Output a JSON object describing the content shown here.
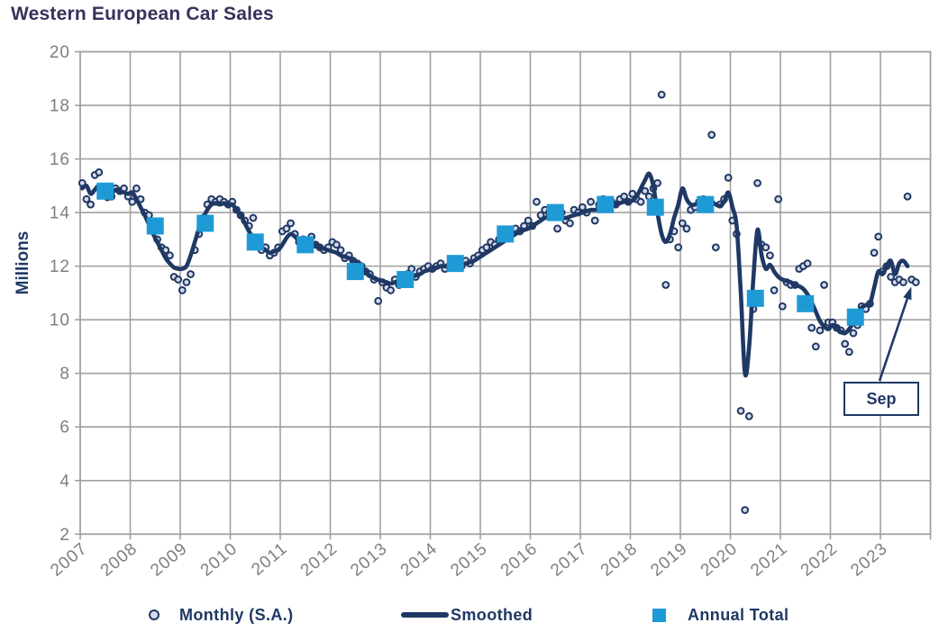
{
  "title": {
    "text": "Western European Car Sales"
  },
  "y_axis": {
    "label": "Millions",
    "min": 2,
    "max": 20,
    "tick_step": 2,
    "ticks": [
      20,
      18,
      16,
      14,
      12,
      10,
      8,
      6,
      4,
      2
    ]
  },
  "x_axis": {
    "labels": [
      "2007",
      "2008",
      "2009",
      "2010",
      "2011",
      "2012",
      "2013",
      "2014",
      "2015",
      "2016",
      "2017",
      "2018",
      "2019",
      "2020",
      "2021",
      "2022",
      "2023"
    ]
  },
  "legend": {
    "items": [
      {
        "label": "Monthly (S.A.)",
        "marker": "circle"
      },
      {
        "label": "Smoothed",
        "marker": "line"
      },
      {
        "label": "Annual Total",
        "marker": "square"
      }
    ]
  },
  "annotation": {
    "text": "Sep",
    "points_to_month": "2023-09",
    "points_to_value": 11.4
  },
  "colors": {
    "navy": "#1F3864",
    "annual_square": "#1E9BD7",
    "dot_fill": "#D7DAEA",
    "grid": "#A0A0A0",
    "axis_text": "#7F7F7F",
    "title_text": "#35325B",
    "background": "#FFFFFF"
  },
  "chart_data": {
    "type": "line",
    "title": "Western European Car Sales",
    "xlabel": "",
    "ylabel": "Millions",
    "ylim": [
      2,
      20
    ],
    "xlim": [
      2007,
      2024
    ],
    "grid": true,
    "legend_position": "bottom",
    "units": "millions of vehicles, seasonally adjusted annual rate",
    "series": [
      {
        "name": "Monthly (S.A.)",
        "style": "scatter-circle",
        "start": "2007-01",
        "end": "2023-09",
        "frequency": "monthly",
        "values_by_year": {
          "2007": [
            15.1,
            14.5,
            14.3,
            15.4,
            15.5,
            14.9,
            14.8,
            14.6,
            14.9,
            14.8,
            14.9,
            14.6
          ],
          "2008": [
            14.4,
            14.9,
            14.5,
            14.0,
            13.9,
            13.4,
            13.0,
            12.7,
            12.6,
            12.4,
            11.6,
            11.5
          ],
          "2009": [
            11.1,
            11.4,
            11.7,
            12.6,
            13.2,
            13.8,
            14.3,
            14.5,
            14.4,
            14.5,
            14.4,
            14.3
          ],
          "2010": [
            14.4,
            14.1,
            13.9,
            13.7,
            13.5,
            13.8,
            12.9,
            12.6,
            12.7,
            12.4,
            12.5,
            12.7
          ],
          "2011": [
            13.3,
            13.4,
            13.6,
            13.2,
            12.9,
            13.0,
            12.9,
            13.1,
            12.8,
            12.7,
            12.6,
            12.7
          ],
          "2012": [
            12.9,
            12.8,
            12.6,
            12.3,
            12.4,
            12.2,
            12.1,
            12.0,
            11.8,
            11.7,
            11.5,
            10.7
          ],
          "2013": [
            11.4,
            11.2,
            11.1,
            11.5,
            11.3,
            11.6,
            11.7,
            11.9,
            11.6,
            11.8,
            11.9,
            12.0
          ],
          "2014": [
            11.9,
            12.0,
            12.1,
            11.9,
            12.0,
            12.2,
            12.1,
            12.0,
            12.2,
            12.1,
            12.3,
            12.4
          ],
          "2015": [
            12.6,
            12.7,
            12.9,
            12.8,
            13.0,
            13.1,
            13.3,
            13.2,
            13.4,
            13.3,
            13.5,
            13.7
          ],
          "2016": [
            13.5,
            14.4,
            13.9,
            14.1,
            14.0,
            13.9,
            13.4,
            14.0,
            13.7,
            13.6,
            14.1,
            14.0
          ],
          "2017": [
            14.2,
            14.0,
            14.4,
            13.7,
            14.3,
            14.5,
            14.2,
            14.4,
            14.3,
            14.5,
            14.6,
            14.4
          ],
          "2018": [
            14.7,
            14.5,
            14.4,
            14.8,
            14.6,
            14.9,
            15.1,
            18.4,
            11.3,
            13.0,
            13.3,
            12.7
          ],
          "2019": [
            13.6,
            13.4,
            14.1,
            14.2,
            14.4,
            14.5,
            14.3,
            16.9,
            12.7,
            14.3,
            14.5,
            15.3
          ],
          "2020": [
            13.7,
            13.2,
            6.6,
            2.9,
            6.4,
            10.4,
            15.1,
            12.8,
            12.7,
            12.4,
            11.1,
            14.5
          ],
          "2021": [
            10.5,
            11.4,
            11.3,
            11.3,
            11.9,
            12.0,
            12.1,
            9.7,
            9.0,
            9.6,
            11.3,
            9.9
          ],
          "2022": [
            9.9,
            9.7,
            9.6,
            9.1,
            8.8,
            9.5,
            9.8,
            10.5,
            10.4,
            10.6,
            12.5,
            13.1
          ],
          "2023": [
            11.8,
            12.0,
            11.6,
            11.4,
            11.5,
            11.4,
            14.6,
            11.5,
            11.4
          ]
        }
      },
      {
        "name": "Smoothed",
        "style": "line",
        "start": "2007-01",
        "end": "2023-07",
        "frequency": "monthly",
        "values_by_year": {
          "2007": [
            14.9,
            15.0,
            14.7,
            14.85,
            15.0,
            14.75,
            14.5,
            14.7,
            14.85,
            14.8,
            14.75,
            14.7
          ],
          "2008": [
            14.75,
            14.5,
            14.2,
            13.9,
            13.55,
            13.2,
            12.9,
            12.6,
            12.3,
            12.1,
            11.95,
            11.9
          ],
          "2009": [
            11.9,
            12.0,
            12.4,
            12.9,
            13.4,
            13.8,
            14.1,
            14.3,
            14.35,
            14.3,
            14.35,
            14.3
          ],
          "2010": [
            14.3,
            14.1,
            13.9,
            13.6,
            13.3,
            13.05,
            12.85,
            12.7,
            12.6,
            12.5,
            12.55,
            12.6
          ],
          "2011": [
            12.8,
            13.05,
            13.2,
            13.1,
            12.95,
            12.9,
            12.9,
            12.85,
            12.8,
            12.7,
            12.65,
            12.6
          ],
          "2012": [
            12.55,
            12.5,
            12.4,
            12.35,
            12.3,
            12.2,
            12.1,
            11.95,
            11.8,
            11.65,
            11.55,
            11.5
          ],
          "2013": [
            11.45,
            11.4,
            11.35,
            11.4,
            11.45,
            11.5,
            11.55,
            11.6,
            11.65,
            11.7,
            11.8,
            11.85
          ],
          "2014": [
            11.9,
            11.95,
            12.0,
            12.0,
            12.05,
            12.1,
            12.1,
            12.1,
            12.1,
            12.15,
            12.2,
            12.3
          ],
          "2015": [
            12.4,
            12.5,
            12.6,
            12.7,
            12.8,
            12.9,
            13.0,
            13.1,
            13.2,
            13.3,
            13.35,
            13.4
          ],
          "2016": [
            13.5,
            13.6,
            13.7,
            13.8,
            13.85,
            13.9,
            13.85,
            13.8,
            13.8,
            13.85,
            13.9,
            13.95
          ],
          "2017": [
            14.0,
            14.05,
            14.1,
            14.1,
            14.15,
            14.2,
            14.25,
            14.3,
            14.3,
            14.35,
            14.4,
            14.4
          ],
          "2018": [
            14.45,
            14.6,
            14.9,
            15.2,
            15.45,
            15.0,
            14.0,
            13.2,
            12.9,
            13.2,
            13.8,
            14.3
          ],
          "2019": [
            14.9,
            14.5,
            14.3,
            14.3,
            14.35,
            14.3,
            14.35,
            14.4,
            14.3,
            14.25,
            14.4,
            14.75
          ],
          "2020": [
            14.2,
            13.5,
            11.0,
            8.0,
            9.0,
            11.5,
            13.35,
            12.4,
            11.9,
            12.05,
            11.8,
            11.6
          ],
          "2021": [
            11.5,
            11.45,
            11.4,
            11.3,
            11.25,
            11.15,
            10.95,
            10.65,
            10.3,
            9.95,
            9.75,
            9.65
          ],
          "2022": [
            9.8,
            9.7,
            9.55,
            9.5,
            9.65,
            9.9,
            10.2,
            10.45,
            10.55,
            10.6,
            11.2,
            11.8
          ],
          "2023": [
            11.7,
            12.0,
            12.2,
            11.7,
            12.1,
            12.2,
            12.0
          ]
        }
      },
      {
        "name": "Annual Total",
        "style": "scatter-square",
        "start_year": 2007,
        "years": [
          2007,
          2008,
          2009,
          2010,
          2011,
          2012,
          2013,
          2014,
          2015,
          2016,
          2017,
          2018,
          2019,
          2020,
          2021,
          2022
        ],
        "values": [
          14.8,
          13.5,
          13.6,
          12.9,
          12.8,
          11.8,
          11.5,
          12.1,
          13.2,
          14.0,
          14.3,
          14.2,
          14.3,
          10.8,
          10.6,
          10.1
        ]
      }
    ],
    "annotations": [
      {
        "text": "Sep",
        "x": "2023-09",
        "y": 11.4
      }
    ]
  }
}
